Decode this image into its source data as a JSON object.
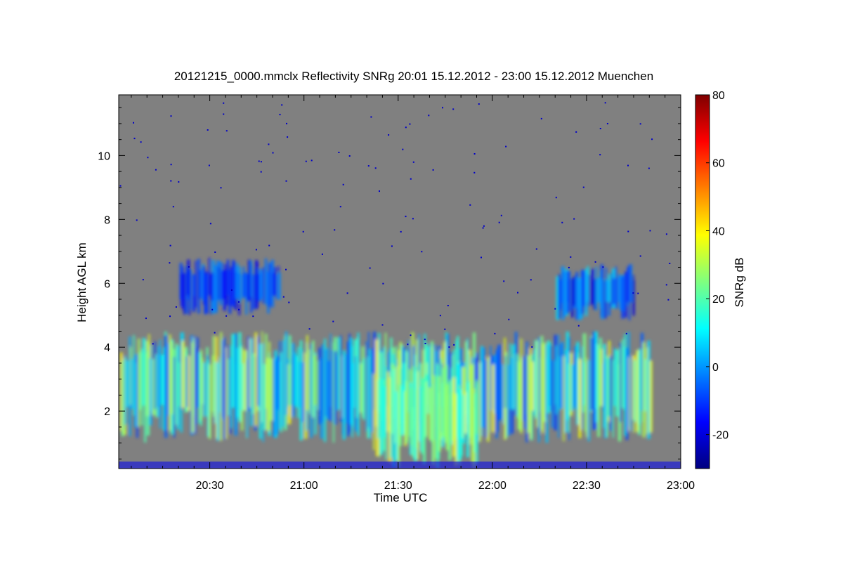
{
  "chart_data": {
    "type": "heatmap",
    "title": "20121215_0000.mmclx Reflectivity SNRg   20:01 15.12.2012 - 23:00 15.12.2012 Muenchen",
    "xlabel": "Time UTC",
    "ylabel": "Height AGL km",
    "colorbar_label": "SNRg dB",
    "x_ticks": [
      "20:30",
      "21:00",
      "21:30",
      "22:00",
      "22:30",
      "23:00"
    ],
    "x_tick_minutes": [
      30,
      60,
      90,
      120,
      150,
      180
    ],
    "xlim_minutes_after_20_00": [
      1,
      180
    ],
    "y_ticks": [
      2,
      4,
      6,
      8,
      10
    ],
    "ylim": [
      0.2,
      11.9
    ],
    "colorbar_ticks": [
      -20,
      0,
      20,
      40,
      60,
      80
    ],
    "colorbar_range": [
      -30,
      80
    ],
    "background_color": "#808080",
    "colormap": [
      "#00007f",
      "#0000ff",
      "#007fff",
      "#00ffff",
      "#7fff7f",
      "#ffff00",
      "#ff7f00",
      "#ff0000",
      "#7f0000"
    ],
    "cloud_regions": [
      {
        "name": "low-mid cloud layer",
        "t_start": "20:01",
        "t_end": "22:50",
        "base_km": 1.0,
        "top_km": 4.5,
        "snr_range_db": [
          -10,
          40
        ]
      },
      {
        "name": "precipitation fallstreaks",
        "t_start": "21:22",
        "t_end": "21:55",
        "base_km": 0.2,
        "top_km": 3.5,
        "snr_range_db": [
          10,
          40
        ]
      },
      {
        "name": "upper cloud patches west",
        "t_start": "20:20",
        "t_end": "20:52",
        "base_km": 5.0,
        "top_km": 6.8,
        "snr_range_db": [
          -20,
          0
        ]
      },
      {
        "name": "upper cloud patches east",
        "t_start": "22:20",
        "t_end": "22:45",
        "base_km": 4.8,
        "top_km": 6.6,
        "snr_range_db": [
          -20,
          10
        ]
      }
    ]
  }
}
